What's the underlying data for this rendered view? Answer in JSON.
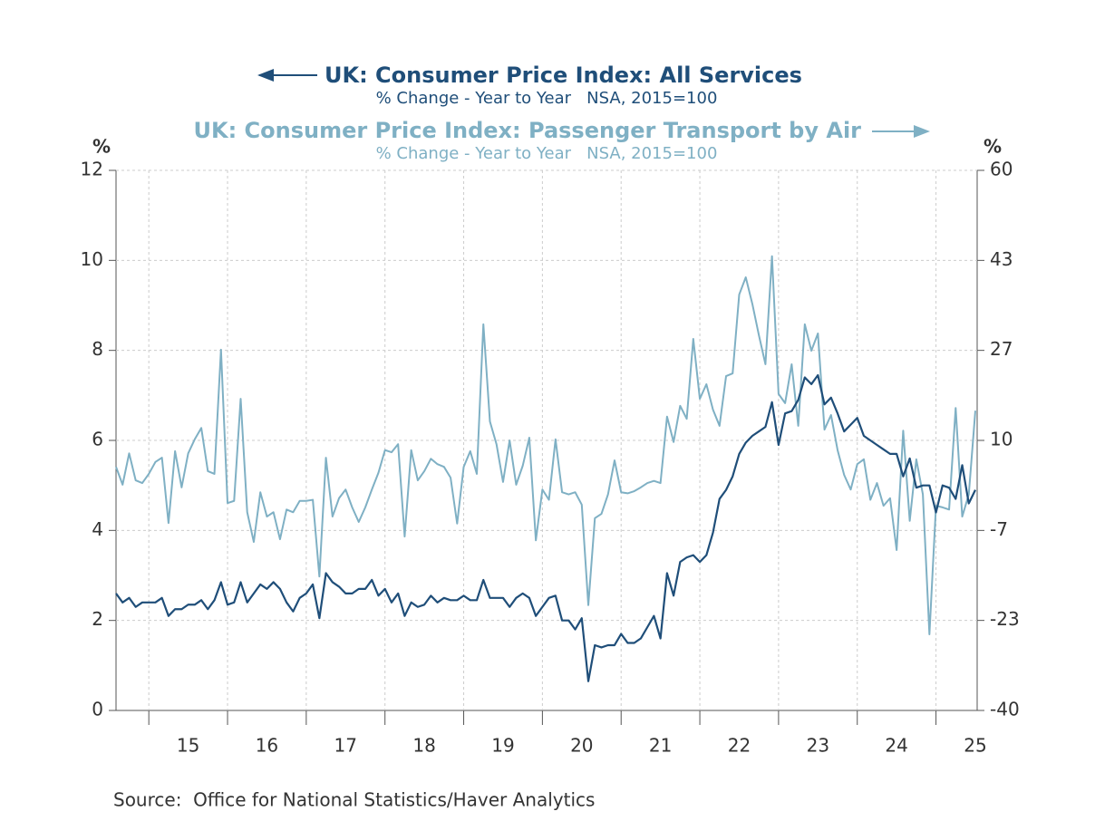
{
  "chart_data": {
    "type": "line",
    "y_unit": "%",
    "y2_unit": "%",
    "source": "Source:  Office for National Statistics/Haver Analytics",
    "categories": [
      null,
      null,
      null,
      null,
      null,
      null,
      null,
      null,
      null,
      null,
      null,
      "15",
      null,
      null,
      null,
      null,
      null,
      null,
      null,
      null,
      null,
      null,
      null,
      "16",
      null,
      null,
      null,
      null,
      null,
      null,
      null,
      null,
      null,
      null,
      null,
      "17",
      null,
      null,
      null,
      null,
      null,
      null,
      null,
      null,
      null,
      null,
      null,
      "18",
      null,
      null,
      null,
      null,
      null,
      null,
      null,
      null,
      null,
      null,
      null,
      "19",
      null,
      null,
      null,
      null,
      null,
      null,
      null,
      null,
      null,
      null,
      null,
      "20",
      null,
      null,
      null,
      null,
      null,
      null,
      null,
      null,
      null,
      null,
      null,
      "21",
      null,
      null,
      null,
      null,
      null,
      null,
      null,
      null,
      null,
      null,
      null,
      "22",
      null,
      null,
      null,
      null,
      null,
      null,
      null,
      null,
      null,
      null,
      null,
      "23",
      null,
      null,
      null,
      null,
      null,
      null,
      null,
      null,
      null,
      null,
      null,
      "24",
      null,
      null,
      null,
      null,
      null,
      null,
      null,
      null,
      null,
      null,
      null,
      "25"
    ],
    "ylim": [
      0,
      12
    ],
    "yticks": [
      0,
      2,
      4,
      6,
      8,
      10,
      12
    ],
    "y2lim": [
      -40,
      60
    ],
    "y2ticks": [
      -40,
      {
        "value": -23.33,
        "label": "-23"
      },
      {
        "value": -6.67,
        "label": "-7"
      },
      10,
      {
        "value": 26.67,
        "label": "27"
      },
      {
        "value": 43.33,
        "label": "43"
      },
      60
    ],
    "grid": true,
    "series": [
      {
        "name": "UK: Consumer Price Index: All Services",
        "subtitle": "% Change - Year to Year   NSA, 2015=100",
        "color": "#1f4e79",
        "axis": "y",
        "values": [
          2.6,
          2.4,
          2.5,
          2.3,
          2.4,
          2.4,
          2.4,
          2.5,
          2.1,
          2.25,
          2.25,
          2.35,
          2.35,
          2.45,
          2.25,
          2.45,
          2.85,
          2.35,
          2.4,
          2.85,
          2.4,
          2.6,
          2.8,
          2.7,
          2.85,
          2.7,
          2.4,
          2.2,
          2.5,
          2.6,
          2.8,
          2.05,
          3.05,
          2.85,
          2.75,
          2.6,
          2.6,
          2.7,
          2.7,
          2.9,
          2.55,
          2.7,
          2.4,
          2.6,
          2.1,
          2.4,
          2.3,
          2.35,
          2.55,
          2.4,
          2.5,
          2.45,
          2.45,
          2.55,
          2.45,
          2.45,
          2.9,
          2.5,
          2.5,
          2.5,
          2.3,
          2.5,
          2.6,
          2.5,
          2.1,
          2.3,
          2.5,
          2.55,
          2.0,
          2.0,
          1.8,
          2.05,
          0.65,
          1.45,
          1.4,
          1.45,
          1.45,
          1.7,
          1.5,
          1.5,
          1.6,
          1.85,
          2.1,
          1.6,
          3.05,
          2.55,
          3.3,
          3.4,
          3.45,
          3.3,
          3.45,
          3.95,
          4.7,
          4.9,
          5.2,
          5.7,
          5.95,
          6.1,
          6.2,
          6.3,
          6.85,
          5.9,
          6.6,
          6.65,
          6.9,
          7.4,
          7.25,
          7.45,
          6.8,
          6.95,
          6.6,
          6.2,
          6.35,
          6.5,
          6.1,
          6.0,
          5.9,
          5.8,
          5.7,
          5.7,
          5.2,
          5.6,
          4.95,
          5.0,
          5.0,
          4.4,
          5.0,
          4.95,
          4.7,
          5.45,
          4.6,
          4.9
        ]
      },
      {
        "name": "UK: Consumer Price Index: Passenger Transport by Air",
        "subtitle": "% Change - Year to Year   NSA, 2015=100",
        "color": "#7fb0c4",
        "axis": "y2",
        "values": [
          5.1,
          1.8,
          7.6,
          2.6,
          2.1,
          3.8,
          6,
          6.8,
          -5.3,
          8,
          1.3,
          7.6,
          10.2,
          12.3,
          4.3,
          3.8,
          26.8,
          -1.6,
          -1.2,
          17.7,
          -3.3,
          -8.8,
          0.4,
          -4.1,
          -3.3,
          -8.3,
          -2.8,
          -3.3,
          -1.2,
          -1.2,
          -1.0,
          -15.2,
          6.8,
          -4.1,
          -0.7,
          0.9,
          -2.4,
          -5.1,
          -2.4,
          0.9,
          4.0,
          8.2,
          7.8,
          9.3,
          -7.8,
          8.2,
          2.6,
          4.3,
          6.6,
          5.6,
          5.1,
          3.1,
          -5.4,
          5.1,
          8,
          3.8,
          31.5,
          13.5,
          9.3,
          2.3,
          10,
          1.8,
          5.3,
          10.5,
          -8.5,
          0.9,
          -1,
          10.2,
          0.4,
          0,
          0.4,
          -1.9,
          -20.5,
          -4.4,
          -3.6,
          0,
          6.3,
          0.4,
          0.2,
          0.6,
          1.3,
          2.1,
          2.5,
          2.1,
          14.4,
          9.7,
          16.4,
          14,
          28.8,
          17.7,
          20.4,
          15.7,
          12.7,
          21.9,
          22.4,
          37,
          40.2,
          35.3,
          29.5,
          24.1,
          44.1,
          18.6,
          16.9,
          24.1,
          12.7,
          31.5,
          26.6,
          29.8,
          12,
          14.7,
          8.2,
          3.6,
          0.9,
          5.6,
          6.5,
          -1,
          2.1,
          -2.1,
          -0.7,
          -10.3,
          11.8,
          -4.9,
          6.5,
          0,
          -25.9,
          -2.1,
          -2.4,
          -2.8,
          16,
          -4.1,
          0,
          15.5
        ]
      }
    ]
  }
}
